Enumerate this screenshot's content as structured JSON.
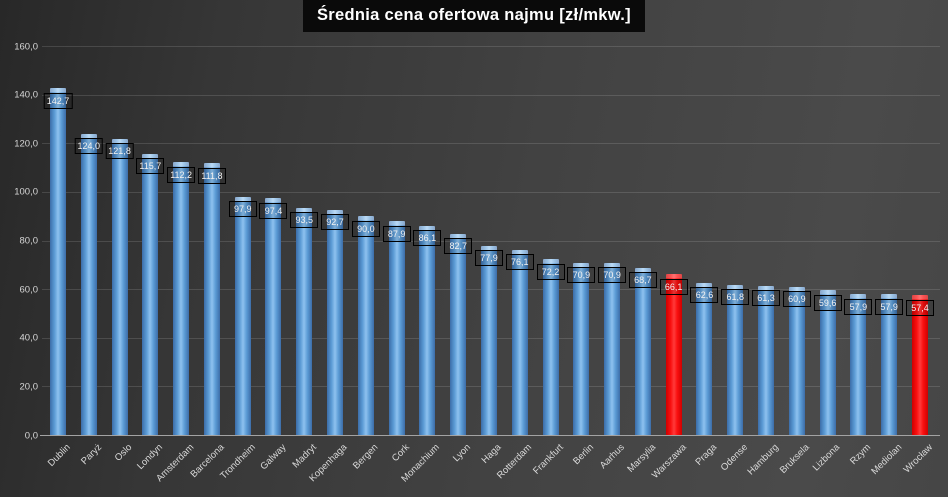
{
  "title": "Średnia cena ofertowa najmu [zł/mkw.]",
  "chart_data": {
    "type": "bar",
    "title": "Średnia cena ofertowa najmu [zł/mkw.]",
    "categories": [
      "Dublin",
      "Paryż",
      "Oslo",
      "Londyn",
      "Amsterdam",
      "Barcelona",
      "Trondheim",
      "Galway",
      "Madryt",
      "Kopenhaga",
      "Bergen",
      "Cork",
      "Monachium",
      "Lyon",
      "Haga",
      "Rotterdam",
      "Frankfurt",
      "Berlin",
      "Aarhus",
      "Marsylia",
      "Warszawa",
      "Praga",
      "Odense",
      "Hamburg",
      "Bruksela",
      "Lizbona",
      "Rzym",
      "Mediolan",
      "Wrocław"
    ],
    "values": [
      142.7,
      124.0,
      121.8,
      115.7,
      112.2,
      111.8,
      97.9,
      97.4,
      93.5,
      92.7,
      90.0,
      87.9,
      86.1,
      82.7,
      77.9,
      76.1,
      72.2,
      70.9,
      70.9,
      68.7,
      66.1,
      62.6,
      61.8,
      61.3,
      60.9,
      59.6,
      57.9,
      57.9,
      57.4
    ],
    "value_labels": [
      "142,7",
      "124,0",
      "121,8",
      "115,7",
      "112,2",
      "111,8",
      "97,9",
      "97,4",
      "93,5",
      "92,7",
      "90,0",
      "87,9",
      "86,1",
      "82,7",
      "77,9",
      "76,1",
      "72,2",
      "70,9",
      "70,9",
      "68,7",
      "66,1",
      "62,6",
      "61,8",
      "61,3",
      "60,9",
      "59,6",
      "57,9",
      "57,9",
      "57,4"
    ],
    "highlight_indices": [
      20,
      28
    ],
    "xlabel": "",
    "ylabel": "",
    "ylim": [
      0,
      160
    ],
    "ytick_step": 20,
    "ytick_labels": [
      "0,0",
      "20,0",
      "40,0",
      "60,0",
      "80,0",
      "100,0",
      "120,0",
      "140,0",
      "160,0"
    ],
    "grid": true,
    "legend": "none",
    "colors": {
      "bar_default": "#5B9BD5",
      "bar_highlight": "#FF0000",
      "background": "#404040",
      "title_background": "#0A0A0A",
      "title_text": "#FFFFFF",
      "tick_text": "#D9D9D9",
      "gridline": "#5A5A5A",
      "axis_line": "#A3A3A3",
      "value_label_text": "#F2F2F2",
      "value_label_border": "#000000"
    }
  }
}
